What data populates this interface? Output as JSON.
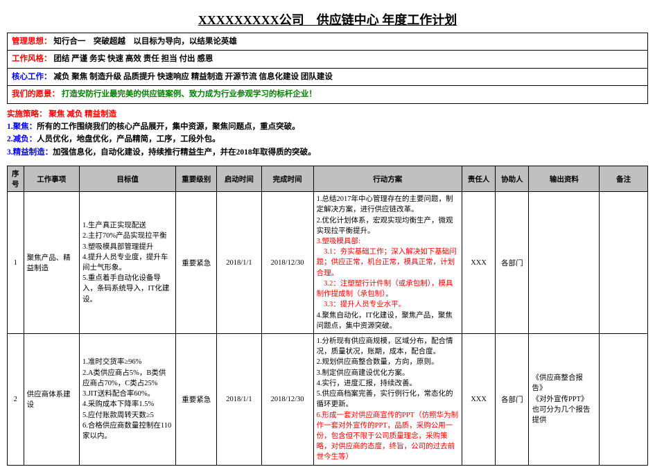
{
  "title": "XXXXXXXXX公司　供应链中心 年度工作计划",
  "h1_label": "管理思想：",
  "h1_text": "知行合一　突破超越　以目标为导向，以结果论英雄",
  "h2_label": "工作风格：",
  "h2_text": "团结 严谨 务实 快速 高效 责任 担当 付出 感恩",
  "h3_label": "核心工作：",
  "h3_text": "减负 聚焦 制造升级 品质提升 快速响应 精益制造 开源节流 信息化建设 团队建设",
  "h4_label": "我们的愿景：",
  "h4_text": "打造安防行业最完美的供应链案例、致力成为行业参观学习的标杆企业！",
  "strat_label": "实施策略：",
  "strat_text": "聚焦 减负 精益制造",
  "s1_label": "1.聚焦：",
  "s1_text": "所有的工作围绕我们的核心产品展开，集中资源，聚焦问题点，重点突破。",
  "s2_label": "2.减负：",
  "s2_text": "人员优化，地盘优化，产品精简，工序，工段外包。",
  "s3_label": "3.精益制造：",
  "s3_text": "加强信息化，自动化建设，持续推行精益生产，并在2018年取得质的突破。",
  "columns": [
    "序号",
    "工作事项",
    "目标值",
    "重要级别",
    "启动时间",
    "完成时间",
    "行动方案",
    "责任人",
    "协助人",
    "输出资料",
    "备注"
  ],
  "r1": {
    "seq": "1",
    "item": "聚焦产品、精益制造",
    "target": "1.生产真正实现配送\n2.主打70%产品实现拉平衡\n3.塑吸模具部管理提升\n4.提升人员专业度，提升车间士气形象。\n5.重点着手自动化设备导入，条码系统导入，IT化建设。",
    "level": "重要紧急",
    "start": "2018/1/1",
    "end": "2018/12/30",
    "plan_a": "1.总结2017年中心管理存在的主要问题，制定解决方案，进行供应链改革。\n2.优化计划体系，宏观实现均衡生产，微观实现拉平衡提升。",
    "plan_b": "3.塑吸模具部:\n　3.1：夯实基础工作；深入解决如下基础问题；供应正常，机台正常，模具正常，计划合理。\n　3.2：注塑塑行计件制（或承包制），模具制作提成制（承包制）。\n　3.3：提升人员专业水平。",
    "plan_c": "4.聚焦自动化，IT化建设，聚焦产品，聚焦问题点，集中资源突破。",
    "owner": "XXX",
    "assist": "各部门",
    "output": "",
    "note": ""
  },
  "r2": {
    "seq": "2",
    "item": "供应商体系建设",
    "target": "1.准时交货率≥96%\n2.A类供应商占5%，B类供应商占70%，C类占25%\n3.JIT送料配合率60%。\n4.采购成本下降率1.5%\n5.应付账款周转天数≥5\n6.合格供应商数量控制在110家以内。",
    "level": "重要紧急",
    "start": "2018/1/1",
    "end": "2018/12/30",
    "plan_a": "1.分析现有供应商规模，区域分布，配合情况，质量状况，账期，成本，配合度。\n2.规划供应商整合数量，方向，原则。\n3.制定供应商建设优化方案。\n4.实行，进度汇报，持续改善。\n5.供应商档案完善，实行例行化，常态化的循环更新。",
    "plan_b": "6.形成一套对供应商宣传的PPT（仿照华为制作一套对外宣传的PPT，品质，采购公用一份，包含但不限于公司质量理念，采购策略，对供应商的态度，终旨，公司的过去前世今生等）",
    "plan_c": "",
    "owner": "XXX",
    "assist": "各部门",
    "output": "《供应商整合报告》\n《对外宣传PPT》\n也可分为几个报告提供",
    "note": ""
  }
}
